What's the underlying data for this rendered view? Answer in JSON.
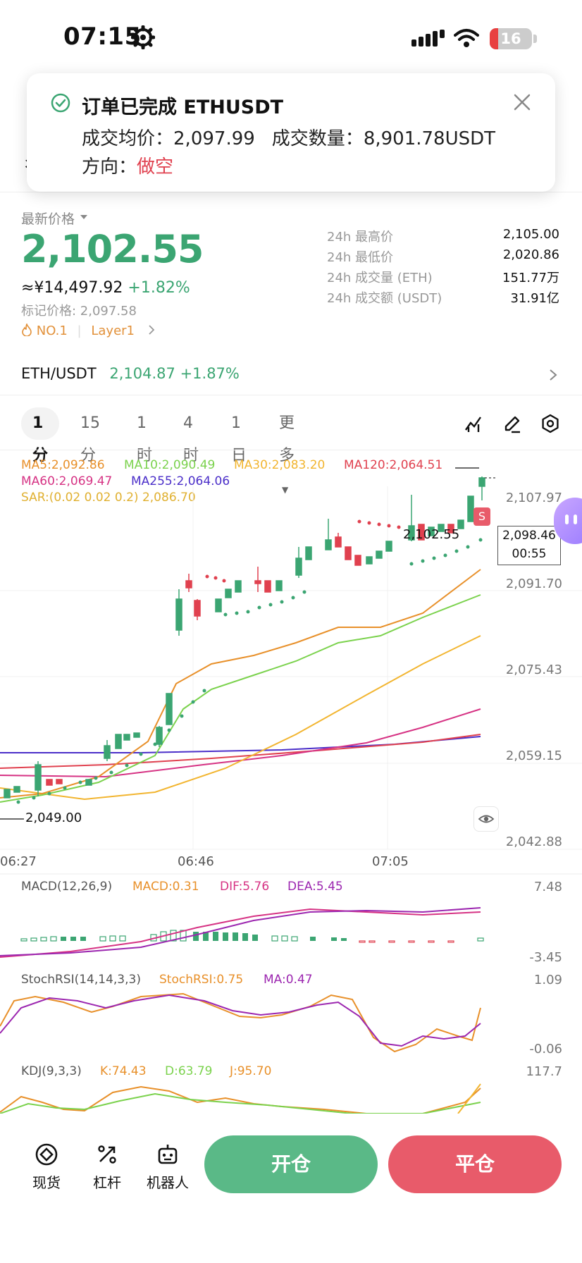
{
  "status_bar": {
    "time": "07:15",
    "battery": "16"
  },
  "toast": {
    "title": "订单已完成 ETHUSDT",
    "avg_label": "成交均价：",
    "avg_value": "2,097.99",
    "qty_label": "成交数量：",
    "qty_value": "8,901.78USDT",
    "dir_label": "方向：",
    "dir_value": "做空"
  },
  "ticker": {
    "latest_label": "最新价格",
    "price": "2,102.55",
    "cny": "≈¥14,497.92",
    "change": "+1.82%",
    "mark_price": "标记价格: 2,097.58",
    "rank": "NO.1",
    "tag": "Layer1",
    "stats": [
      {
        "label": "24h 最高价",
        "value": "2,105.00"
      },
      {
        "label": "24h 最低价",
        "value": "2,020.86"
      },
      {
        "label": "24h 成交量 (ETH)",
        "value": "151.77万"
      },
      {
        "label": "24h 成交额 (USDT)",
        "value": "31.91亿"
      }
    ]
  },
  "pair": {
    "name": "ETH/USDT",
    "price": "2,104.87",
    "change": "+1.87%"
  },
  "tabs": [
    "1分",
    "15分",
    "1时",
    "4时",
    "1日",
    "更多"
  ],
  "chart": {
    "ma": [
      {
        "label": "MA5:2,092.86",
        "color": "#e8902a"
      },
      {
        "label": "MA10:2,090.49",
        "color": "#7bd24d"
      },
      {
        "label": "MA30:2,083.20",
        "color": "#f2b530"
      },
      {
        "label": "MA120:2,064.51",
        "color": "#e0414f"
      },
      {
        "label": "MA60:2,069.47",
        "color": "#d63384"
      },
      {
        "label": "MA255:2,064.06",
        "color": "#4b2fc9"
      },
      {
        "label": "SAR:(0.02 0.02 0.2) 2,086.70",
        "color": "#e0b030"
      }
    ],
    "y_ticks": [
      "2,107.97",
      "2,091.70",
      "2,075.43",
      "2,059.15",
      "2,042.88"
    ],
    "x_ticks": [
      "06:27",
      "06:46",
      "07:05"
    ],
    "last_price_label": "2,102.55",
    "current_box_price": "2,098.46",
    "current_box_time": "00:55",
    "low_label": "2,049.00",
    "signal": "S"
  },
  "macd": {
    "legend": [
      "MACD(12,26,9)",
      "MACD:0.31",
      "DIF:5.76",
      "DEA:5.45"
    ],
    "y_top": "7.48",
    "y_bottom": "-3.45"
  },
  "stochrsi": {
    "legend": [
      "StochRSI(14,14,3,3)",
      "StochRSI:0.75",
      "MA:0.47"
    ],
    "y_top": "1.09",
    "y_bottom": "-0.06"
  },
  "kdj": {
    "legend": [
      "KDJ(9,3,3)",
      "K:74.43",
      "D:63.79",
      "J:95.70"
    ],
    "y_top": "117.7"
  },
  "bottom": {
    "spot": "现货",
    "leverage": "杠杆",
    "robot": "机器人",
    "open": "开仓",
    "close": "平仓"
  },
  "colors": {
    "green": "#3ba572",
    "red": "#e0414f",
    "open_btn": "#5ab987",
    "close_btn": "#e85b6a"
  }
}
